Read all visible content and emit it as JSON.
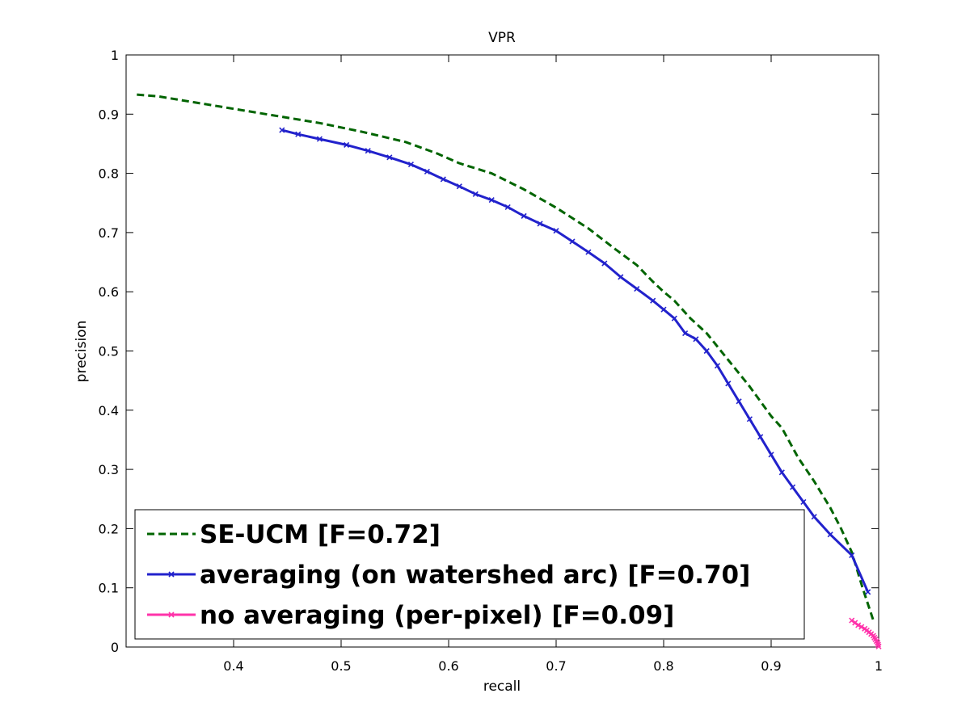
{
  "chart_data": {
    "type": "line",
    "title": "VPR",
    "xlabel": "recall",
    "ylabel": "precision",
    "xlim": [
      0.3,
      1.0
    ],
    "ylim": [
      0,
      1
    ],
    "xticks": [
      "0.4",
      "0.5",
      "0.6",
      "0.7",
      "0.8",
      "0.9",
      "1"
    ],
    "yticks": [
      "0",
      "0.1",
      "0.2",
      "0.3",
      "0.4",
      "0.5",
      "0.6",
      "0.7",
      "0.8",
      "0.9",
      "1"
    ],
    "grid": false,
    "legend_position": "bottom-left",
    "series": [
      {
        "name": "SE-UCM [F=0.72]",
        "color": "#006400",
        "style": "dashed",
        "marker": "none",
        "x": [
          0.31,
          0.33,
          0.38,
          0.43,
          0.48,
          0.52,
          0.56,
          0.59,
          0.61,
          0.64,
          0.67,
          0.7,
          0.73,
          0.755,
          0.775,
          0.79,
          0.8,
          0.81,
          0.825,
          0.84,
          0.86,
          0.88,
          0.9,
          0.91,
          0.925,
          0.94,
          0.955,
          0.965,
          0.975,
          0.985,
          0.995
        ],
        "y": [
          0.933,
          0.93,
          0.915,
          0.9,
          0.885,
          0.87,
          0.853,
          0.833,
          0.817,
          0.8,
          0.773,
          0.742,
          0.707,
          0.672,
          0.645,
          0.617,
          0.6,
          0.585,
          0.555,
          0.53,
          0.485,
          0.44,
          0.39,
          0.37,
          0.32,
          0.28,
          0.235,
          0.2,
          0.16,
          0.1,
          0.045
        ]
      },
      {
        "name": "averaging (on watershed arc) [F=0.70]",
        "color": "#2222cc",
        "style": "solid",
        "marker": "x",
        "x": [
          0.445,
          0.46,
          0.48,
          0.505,
          0.525,
          0.545,
          0.565,
          0.58,
          0.595,
          0.61,
          0.625,
          0.64,
          0.655,
          0.67,
          0.685,
          0.7,
          0.715,
          0.73,
          0.745,
          0.76,
          0.775,
          0.79,
          0.8,
          0.81,
          0.82,
          0.83,
          0.84,
          0.85,
          0.86,
          0.87,
          0.88,
          0.89,
          0.9,
          0.91,
          0.92,
          0.93,
          0.94,
          0.955,
          0.975,
          0.99
        ],
        "y": [
          0.873,
          0.866,
          0.858,
          0.848,
          0.838,
          0.827,
          0.815,
          0.803,
          0.79,
          0.778,
          0.765,
          0.755,
          0.743,
          0.728,
          0.715,
          0.703,
          0.685,
          0.667,
          0.648,
          0.625,
          0.605,
          0.585,
          0.57,
          0.555,
          0.53,
          0.52,
          0.5,
          0.475,
          0.445,
          0.415,
          0.385,
          0.355,
          0.325,
          0.295,
          0.27,
          0.245,
          0.22,
          0.19,
          0.155,
          0.093
        ]
      },
      {
        "name": "no averaging (per-pixel) [F=0.09]",
        "color": "#ff33aa",
        "style": "solid",
        "marker": "x",
        "x": [
          0.975,
          0.978,
          0.981,
          0.984,
          0.987,
          0.989,
          0.991,
          0.993,
          0.995,
          0.996,
          0.997,
          0.998,
          0.999,
          0.9995,
          1.0
        ],
        "y": [
          0.045,
          0.041,
          0.037,
          0.034,
          0.031,
          0.028,
          0.025,
          0.022,
          0.019,
          0.016,
          0.013,
          0.01,
          0.007,
          0.004,
          0.001
        ]
      }
    ]
  }
}
